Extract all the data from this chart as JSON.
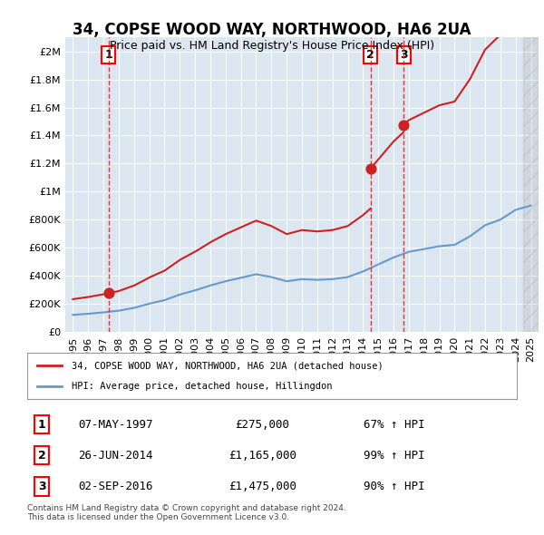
{
  "title": "34, COPSE WOOD WAY, NORTHWOOD, HA6 2UA",
  "subtitle": "Price paid vs. HM Land Registry's House Price Index (HPI)",
  "background_color": "#dce6f0",
  "plot_bg_color": "#dce6f0",
  "red_line_label": "34, COPSE WOOD WAY, NORTHWOOD, HA6 2UA (detached house)",
  "blue_line_label": "HPI: Average price, detached house, Hillingdon",
  "footer": "Contains HM Land Registry data © Crown copyright and database right 2024.\nThis data is licensed under the Open Government Licence v3.0.",
  "transactions": [
    {
      "num": 1,
      "date": "07-MAY-1997",
      "price": "£275,000",
      "hpi": "67% ↑ HPI",
      "year": 1997.35
    },
    {
      "num": 2,
      "date": "26-JUN-2014",
      "price": "£1,165,000",
      "hpi": "99% ↑ HPI",
      "year": 2014.5
    },
    {
      "num": 3,
      "date": "02-SEP-2016",
      "price": "£1,475,000",
      "hpi": "90% ↑ HPI",
      "year": 2016.67
    }
  ],
  "ylim": [
    0,
    2100000
  ],
  "xlim": [
    1994.5,
    2025.5
  ],
  "hpi_base_1995": 120000,
  "sale_price_1": 275000,
  "sale_price_2": 1165000,
  "sale_price_3": 1475000
}
